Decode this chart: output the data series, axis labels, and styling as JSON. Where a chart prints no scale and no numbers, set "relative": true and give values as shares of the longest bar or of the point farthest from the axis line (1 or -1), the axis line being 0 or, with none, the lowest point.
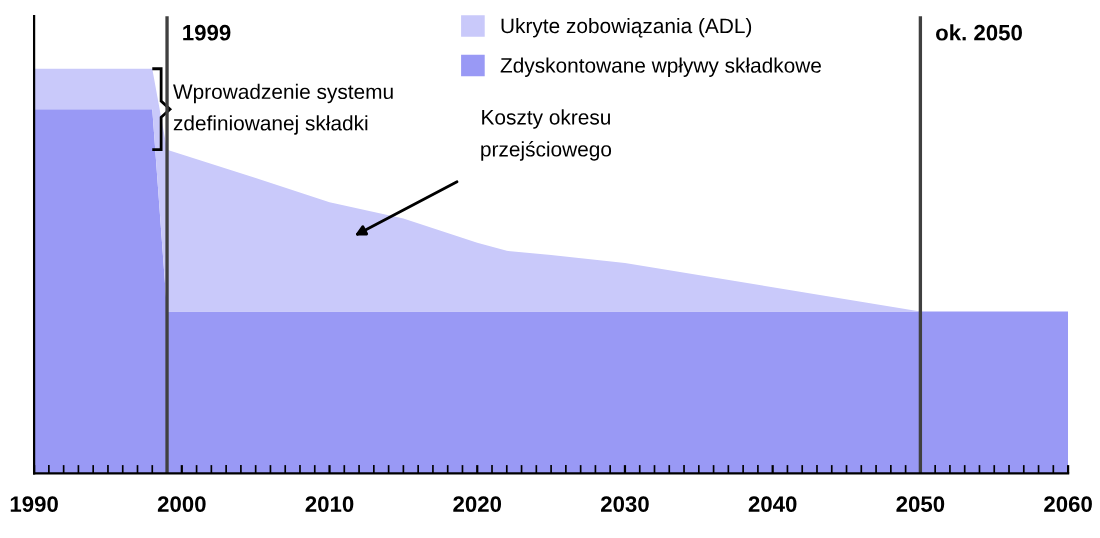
{
  "chart_data": {
    "type": "area",
    "stacked": true,
    "relative": true,
    "x": [
      1990,
      1998,
      1999,
      2005,
      2010,
      2015,
      2020,
      2022,
      2025,
      2030,
      2040,
      2050,
      2060
    ],
    "series": [
      {
        "name": "Zdyskontowane wpływy składkowe",
        "color": "#9999f5",
        "values": [
          0.9,
          0.9,
          0.4,
          0.4,
          0.4,
          0.4,
          0.4,
          0.4,
          0.4,
          0.4,
          0.4,
          0.4,
          0.4
        ]
      },
      {
        "name": "Ukryte zobowiązania (ADL)",
        "color": "#c9c9fa",
        "values": [
          0.1,
          0.1,
          0.4,
          0.33,
          0.27,
          0.23,
          0.17,
          0.15,
          0.14,
          0.12,
          0.06,
          0.0,
          0.0
        ]
      }
    ],
    "xlim": [
      1990,
      2060
    ],
    "xticks": [
      1990,
      2000,
      2010,
      2020,
      2030,
      2040,
      2050,
      2060
    ],
    "ref_lines": [
      {
        "axis": "x",
        "value": 1999,
        "label": "1999",
        "color": "#404040"
      },
      {
        "axis": "x",
        "value": 2050,
        "label": "ok. 2050",
        "color": "#404040"
      }
    ],
    "annotations": [
      "Wprowadzenie systemu\nzdefiniowanej składki",
      "Koszty okresu\nprzejściowego"
    ],
    "legend": "top right",
    "grid": false
  }
}
